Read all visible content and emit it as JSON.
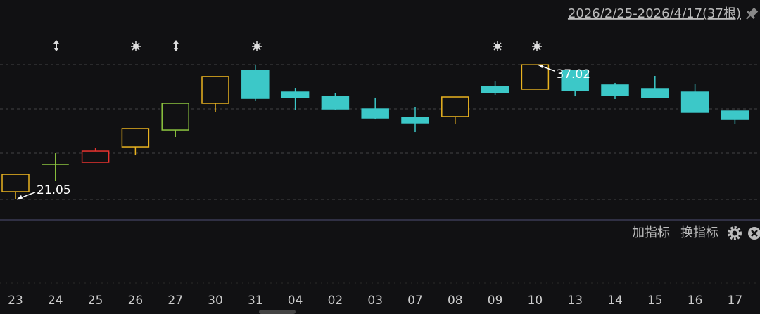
{
  "chart_data": {
    "type": "candlestick",
    "range_label": "2026/2/25-2026/4/17(37根)",
    "buttons": [
      "加指标",
      "换指标"
    ],
    "categories": [
      "23",
      "24",
      "25",
      "26",
      "27",
      "30",
      "31",
      "04",
      "02",
      "03",
      "07",
      "08",
      "09",
      "10",
      "13",
      "14",
      "15",
      "16",
      "17"
    ],
    "open": [
      21.95,
      25.2,
      25.45,
      27.28,
      29.28,
      32.45,
      36.37,
      33.78,
      33.28,
      31.78,
      30.78,
      30.87,
      34.45,
      34.12,
      36.37,
      34.62,
      34.2,
      33.78,
      31.53
    ],
    "close": [
      24.03,
      25.2,
      26.78,
      29.45,
      32.45,
      35.62,
      33.03,
      33.12,
      31.78,
      30.7,
      30.12,
      33.2,
      33.7,
      37.02,
      33.95,
      33.37,
      33.12,
      31.37,
      30.53
    ],
    "high": [
      24.03,
      26.53,
      27.12,
      29.45,
      32.45,
      35.62,
      37.0,
      34.28,
      33.62,
      33.12,
      31.95,
      33.2,
      35.03,
      37.02,
      36.37,
      34.87,
      35.7,
      34.7,
      31.53
    ],
    "low": [
      21.05,
      23.2,
      25.45,
      26.28,
      28.45,
      31.45,
      32.7,
      31.62,
      31.62,
      30.53,
      29.03,
      29.95,
      33.45,
      34.12,
      33.28,
      32.95,
      33.12,
      31.37,
      30.03
    ],
    "colors": [
      "#e9b320",
      "#8dc63f",
      "#e8332f",
      "#e9b320",
      "#8dc63f",
      "#e9b320",
      "#3cc8c8",
      "#3cc8c8",
      "#3cc8c8",
      "#3cc8c8",
      "#3cc8c8",
      "#e9b320",
      "#3cc8c8",
      "#e9b320",
      "#3cc8c8",
      "#3cc8c8",
      "#3cc8c8",
      "#3cc8c8",
      "#3cc8c8"
    ],
    "low_label": "21.05",
    "high_label": "37.02",
    "ylim": [
      18.7,
      44.7
    ]
  }
}
